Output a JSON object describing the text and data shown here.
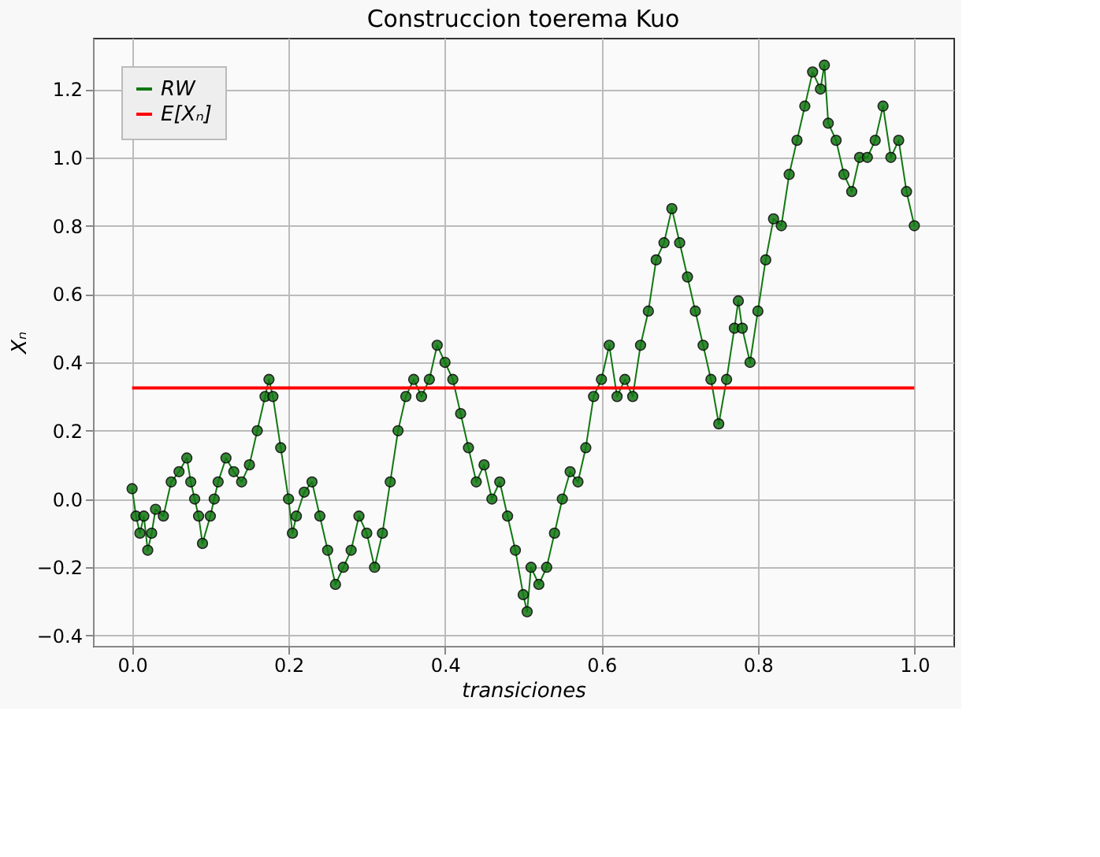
{
  "chart_data": {
    "type": "line",
    "title": "Construccion toerema Kuo",
    "xlabel": "transiciones",
    "ylabel": "Xₙ",
    "xlim": [
      -0.05,
      1.05
    ],
    "ylim": [
      -0.43,
      1.35
    ],
    "xticks": [
      {
        "value": 0,
        "label": "0.0"
      },
      0.2,
      0.4,
      0.6,
      0.8,
      {
        "value": 1,
        "label": "1.0"
      }
    ],
    "yticks": [
      -0.4,
      -0.2,
      {
        "value": 0,
        "label": "0.0"
      },
      0.2,
      0.4,
      0.6,
      0.8,
      {
        "value": 1,
        "label": "1.0"
      },
      1.2
    ],
    "grid": true,
    "legend": "top left",
    "line_style": "solid",
    "series": [
      {
        "name": "RW",
        "color": "#117711",
        "marker": "circle",
        "x": [
          0.0,
          0.005,
          0.01,
          0.015,
          0.02,
          0.025,
          0.03,
          0.04,
          0.05,
          0.06,
          0.07,
          0.075,
          0.08,
          0.085,
          0.09,
          0.1,
          0.105,
          0.11,
          0.12,
          0.13,
          0.14,
          0.15,
          0.16,
          0.17,
          0.175,
          0.18,
          0.19,
          0.2,
          0.205,
          0.21,
          0.22,
          0.23,
          0.24,
          0.25,
          0.26,
          0.27,
          0.28,
          0.29,
          0.3,
          0.31,
          0.32,
          0.33,
          0.34,
          0.35,
          0.36,
          0.37,
          0.38,
          0.39,
          0.4,
          0.41,
          0.42,
          0.43,
          0.44,
          0.45,
          0.46,
          0.47,
          0.48,
          0.49,
          0.5,
          0.505,
          0.51,
          0.52,
          0.53,
          0.54,
          0.55,
          0.56,
          0.57,
          0.58,
          0.59,
          0.6,
          0.61,
          0.62,
          0.63,
          0.64,
          0.65,
          0.66,
          0.67,
          0.68,
          0.69,
          0.7,
          0.71,
          0.72,
          0.73,
          0.74,
          0.75,
          0.76,
          0.77,
          0.775,
          0.78,
          0.79,
          0.8,
          0.81,
          0.82,
          0.83,
          0.84,
          0.85,
          0.86,
          0.87,
          0.88,
          0.885,
          0.89,
          0.9,
          0.91,
          0.92,
          0.93,
          0.94,
          0.95,
          0.96,
          0.97,
          0.98,
          0.99,
          1.0
        ],
        "values": [
          0.03,
          -0.05,
          -0.1,
          -0.05,
          -0.15,
          -0.1,
          -0.03,
          -0.05,
          0.05,
          0.08,
          0.12,
          0.05,
          0.0,
          -0.05,
          -0.13,
          -0.05,
          0.0,
          0.05,
          0.12,
          0.08,
          0.05,
          0.1,
          0.2,
          0.3,
          0.35,
          0.3,
          0.15,
          0.0,
          -0.1,
          -0.05,
          0.02,
          0.05,
          -0.05,
          -0.15,
          -0.25,
          -0.2,
          -0.15,
          -0.05,
          -0.1,
          -0.2,
          -0.1,
          0.05,
          0.2,
          0.3,
          0.35,
          0.3,
          0.35,
          0.45,
          0.4,
          0.35,
          0.25,
          0.15,
          0.05,
          0.1,
          0.0,
          0.05,
          -0.05,
          -0.15,
          -0.28,
          -0.33,
          -0.2,
          -0.25,
          -0.2,
          -0.1,
          0.0,
          0.08,
          0.05,
          0.15,
          0.3,
          0.35,
          0.45,
          0.3,
          0.35,
          0.3,
          0.45,
          0.55,
          0.7,
          0.75,
          0.85,
          0.75,
          0.65,
          0.55,
          0.45,
          0.35,
          0.22,
          0.35,
          0.5,
          0.58,
          0.5,
          0.4,
          0.55,
          0.7,
          0.82,
          0.8,
          0.95,
          1.05,
          1.15,
          1.25,
          1.2,
          1.27,
          1.1,
          1.05,
          0.95,
          0.9,
          1.0,
          1.0,
          1.05,
          1.15,
          1.0,
          1.05,
          0.9,
          0.8
        ]
      },
      {
        "name": "E[Xₙ]",
        "color": "#ff0000",
        "marker": "none",
        "x": [
          0.0,
          1.0
        ],
        "values": [
          0.325,
          0.325
        ]
      }
    ]
  }
}
